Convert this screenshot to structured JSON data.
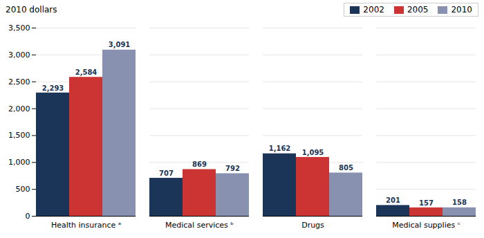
{
  "chart_data": {
    "type": "bar",
    "ylabel": "2010 dollars",
    "categories": [
      "Health insurance ᵃ",
      "Medical services ᵇ",
      "Drugs",
      "Medical supplies ᶜ"
    ],
    "series": [
      {
        "name": "2002",
        "color": "#1a3558",
        "values": [
          2293,
          707,
          1162,
          201
        ],
        "value_labels": [
          "2,293",
          "707",
          "1,162",
          "201"
        ]
      },
      {
        "name": "2005",
        "color": "#cc3333",
        "values": [
          2584,
          869,
          1095,
          157
        ],
        "value_labels": [
          "2,584",
          "869",
          "1,095",
          "157"
        ]
      },
      {
        "name": "2010",
        "color": "#8892b0",
        "values": [
          3091,
          792,
          805,
          158
        ],
        "value_labels": [
          "3,091",
          "792",
          "805",
          "158"
        ]
      }
    ],
    "ylim": [
      0,
      3500
    ],
    "yticks": [
      0,
      500,
      {
        "value": 1000,
        "label": "1,000"
      },
      {
        "value": 1500,
        "label": "1,500"
      },
      {
        "value": 2000,
        "label": "2,000"
      },
      {
        "value": 2500,
        "label": "2,500"
      },
      {
        "value": 3000,
        "label": "3,000"
      },
      {
        "value": 3500,
        "label": "3,500"
      }
    ],
    "grid": true,
    "legend": "upper right",
    "data_labels": true
  }
}
